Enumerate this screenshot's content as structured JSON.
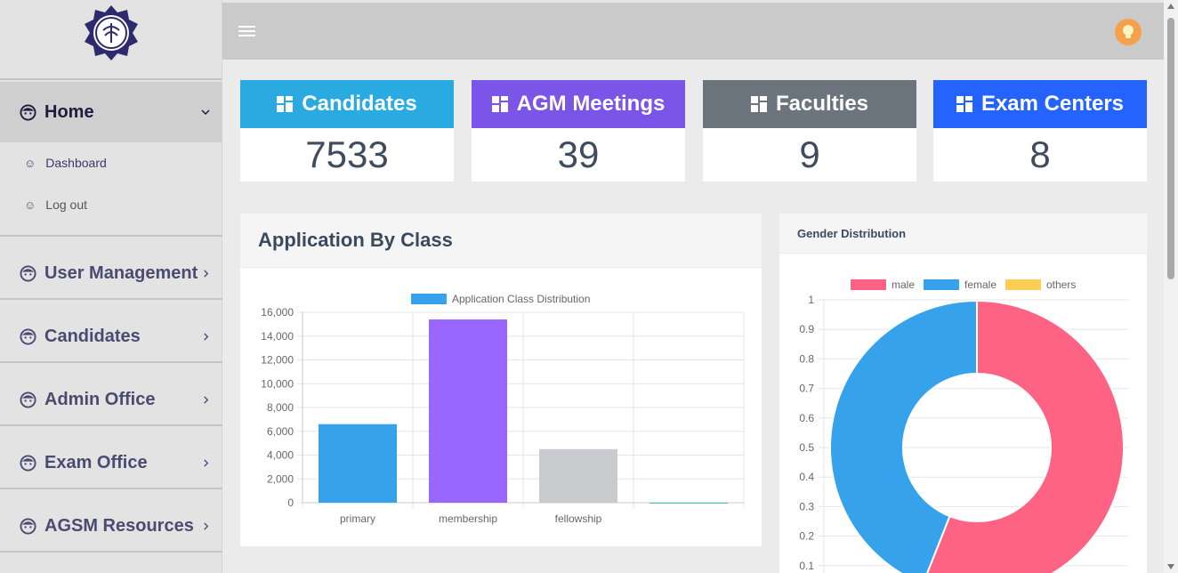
{
  "sidebar": {
    "home": {
      "label": "Home",
      "icon": "face-icon"
    },
    "sub_items": [
      {
        "label": "Dashboard",
        "icon": "smile-icon"
      },
      {
        "label": "Log out",
        "icon": "smile-icon"
      }
    ],
    "menu": [
      {
        "label": "User Management",
        "icon": "face-icon"
      },
      {
        "label": "Candidates",
        "icon": "face-icon"
      },
      {
        "label": "Admin Office",
        "icon": "face-icon"
      },
      {
        "label": "Exam Office",
        "icon": "face-icon"
      },
      {
        "label": "AGSM Resources",
        "icon": "face-icon"
      }
    ]
  },
  "topbar": {
    "menu_icon": "hamburger-icon",
    "avatar_icon": "lightbulb-icon"
  },
  "cards": [
    {
      "title": "Candidates",
      "value": "7533",
      "color": "#29abe2"
    },
    {
      "title": "AGM Meetings",
      "value": "39",
      "color": "#7b55e8"
    },
    {
      "title": "Faculties",
      "value": "9",
      "color": "#6c757d"
    },
    {
      "title": "Exam Centers",
      "value": "8",
      "color": "#2563ff"
    }
  ],
  "panels": {
    "application": {
      "title": "Application By Class"
    },
    "gender": {
      "title": "Gender Distribution"
    }
  },
  "chart_data": [
    {
      "type": "bar",
      "title": "",
      "categories": [
        "primary",
        "membership",
        "fellowship",
        ""
      ],
      "series": [
        {
          "name": "Application Class Distribution",
          "values": [
            6600,
            15400,
            4500,
            0
          ]
        }
      ],
      "colors": [
        "#36a2eb",
        "#9966ff",
        "#c9cbcf",
        "#4bc0c0"
      ],
      "ylim": [
        0,
        16000
      ],
      "yticks": [
        "16,000",
        "14,000",
        "12,000",
        "10,000",
        "8,000",
        "6,000",
        "4,000",
        "2,000",
        "0"
      ],
      "grid": true,
      "legend": "top"
    },
    {
      "type": "pie",
      "title": "",
      "categories": [
        "male",
        "female",
        "others"
      ],
      "values": [
        0.56,
        0.44,
        0
      ],
      "colors": [
        "#ff6384",
        "#36a2eb",
        "#ffcd56"
      ],
      "yticks": [
        "1",
        "0.9",
        "0.8",
        "0.7",
        "0.6",
        "0.5",
        "0.4",
        "0.3",
        "0.2",
        "0.1"
      ],
      "grid": true,
      "legend": "top"
    }
  ]
}
